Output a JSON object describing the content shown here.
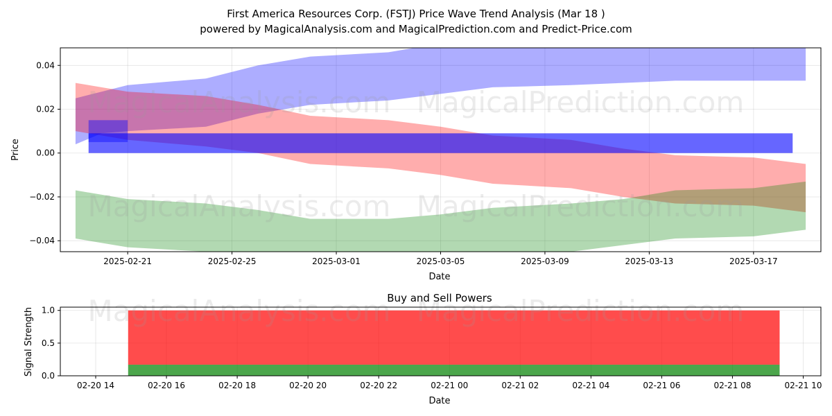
{
  "figure": {
    "title_line1": "First America Resources Corp. (FSTJ) Price Wave Trend Analysis (Mar 18 )",
    "title_line2": "powered by MagicalAnalysis.com and MagicalPrediction.com and Predict-Price.com",
    "watermarks": [
      "MagicalAnalysis.com",
      "MagicalPrediction.com"
    ]
  },
  "chart_data": [
    {
      "type": "area",
      "xlabel": "Date",
      "ylabel": "Price",
      "xlim": [
        "2025-02-18T10:00",
        "2025-03-19T14:00"
      ],
      "ylim": [
        -0.045,
        0.048
      ],
      "grid": true,
      "x_ticks": [
        "2025-02-21",
        "2025-02-25",
        "2025-03-01",
        "2025-03-05",
        "2025-03-09",
        "2025-03-13",
        "2025-03-17"
      ],
      "y_ticks": [
        "0.04",
        "0.02",
        "0.00",
        "−0.02",
        "−0.04"
      ],
      "colors": {
        "blue": "#0000ff",
        "red": "#ff0000",
        "green": "#008000"
      },
      "bands": [
        {
          "color": "blue",
          "opacity": 0.32,
          "x": [
            "2025-02-19",
            "2025-02-20",
            "2025-02-21",
            "2025-02-24",
            "2025-02-26",
            "2025-02-28",
            "2025-03-03",
            "2025-03-05",
            "2025-03-07",
            "2025-03-10",
            "2025-03-12",
            "2025-03-14",
            "2025-03-17",
            "2025-03-19"
          ],
          "upper": [
            0.025,
            0.028,
            0.031,
            0.034,
            0.04,
            0.044,
            0.046,
            0.05,
            0.052,
            0.052,
            0.052,
            0.052,
            0.051,
            0.048
          ],
          "lower": [
            0.004,
            0.009,
            0.01,
            0.012,
            0.018,
            0.022,
            0.024,
            0.027,
            0.03,
            0.031,
            0.032,
            0.033,
            0.033,
            0.033
          ]
        },
        {
          "color": "red",
          "opacity": 0.32,
          "x": [
            "2025-02-19",
            "2025-02-21",
            "2025-02-24",
            "2025-02-26",
            "2025-02-28",
            "2025-03-03",
            "2025-03-05",
            "2025-03-07",
            "2025-03-10",
            "2025-03-12",
            "2025-03-14",
            "2025-03-17",
            "2025-03-19"
          ],
          "upper": [
            0.032,
            0.028,
            0.026,
            0.022,
            0.017,
            0.015,
            0.012,
            0.008,
            0.006,
            0.002,
            -0.001,
            -0.002,
            -0.005
          ],
          "lower": [
            0.01,
            0.006,
            0.003,
            0.0,
            -0.005,
            -0.007,
            -0.01,
            -0.014,
            -0.016,
            -0.02,
            -0.023,
            -0.024,
            -0.027
          ]
        },
        {
          "color": "green",
          "opacity": 0.3,
          "x": [
            "2025-02-19",
            "2025-02-21",
            "2025-02-24",
            "2025-02-26",
            "2025-02-28",
            "2025-03-03",
            "2025-03-05",
            "2025-03-07",
            "2025-03-10",
            "2025-03-12",
            "2025-03-14",
            "2025-03-17",
            "2025-03-19"
          ],
          "upper": [
            -0.017,
            -0.021,
            -0.023,
            -0.026,
            -0.03,
            -0.03,
            -0.028,
            -0.025,
            -0.023,
            -0.021,
            -0.017,
            -0.016,
            -0.013
          ],
          "lower": [
            -0.039,
            -0.043,
            -0.045,
            -0.047,
            -0.049,
            -0.049,
            -0.048,
            -0.047,
            -0.045,
            -0.042,
            -0.039,
            -0.038,
            -0.035
          ]
        }
      ],
      "bars": [
        {
          "color": "blue",
          "opacity": 0.6,
          "x_start": "2025-02-19T12:00",
          "x_end": "2025-03-18T12:00",
          "bottom": 0.0,
          "top": 0.009
        },
        {
          "color": "blue",
          "opacity": 0.4,
          "x_start": "2025-02-19T12:00",
          "x_end": "2025-02-21T00:00",
          "bottom": 0.005,
          "top": 0.015
        }
      ]
    },
    {
      "type": "bar",
      "title": "Buy and Sell Powers",
      "xlabel": "Date",
      "ylabel": "Signal Strength",
      "xlim": [
        "2025-02-20T13:00",
        "2025-02-21T10:30"
      ],
      "ylim": [
        0,
        1.05
      ],
      "grid": true,
      "x_ticks": [
        "02-20 14",
        "02-20 16",
        "02-20 18",
        "02-20 20",
        "02-20 22",
        "02-21 00",
        "02-21 02",
        "02-21 04",
        "02-21 06",
        "02-21 08",
        "02-21 10"
      ],
      "y_ticks": [
        "0.0",
        "0.5",
        "1.0"
      ],
      "x_start": "2025-02-20T14:55",
      "x_end": "2025-02-21T09:20",
      "series": [
        {
          "color": "#008000",
          "opacity": 0.7,
          "values": [
            0.17
          ]
        },
        {
          "color": "#ff0000",
          "opacity": 0.7,
          "values": [
            0.83
          ]
        }
      ]
    }
  ]
}
